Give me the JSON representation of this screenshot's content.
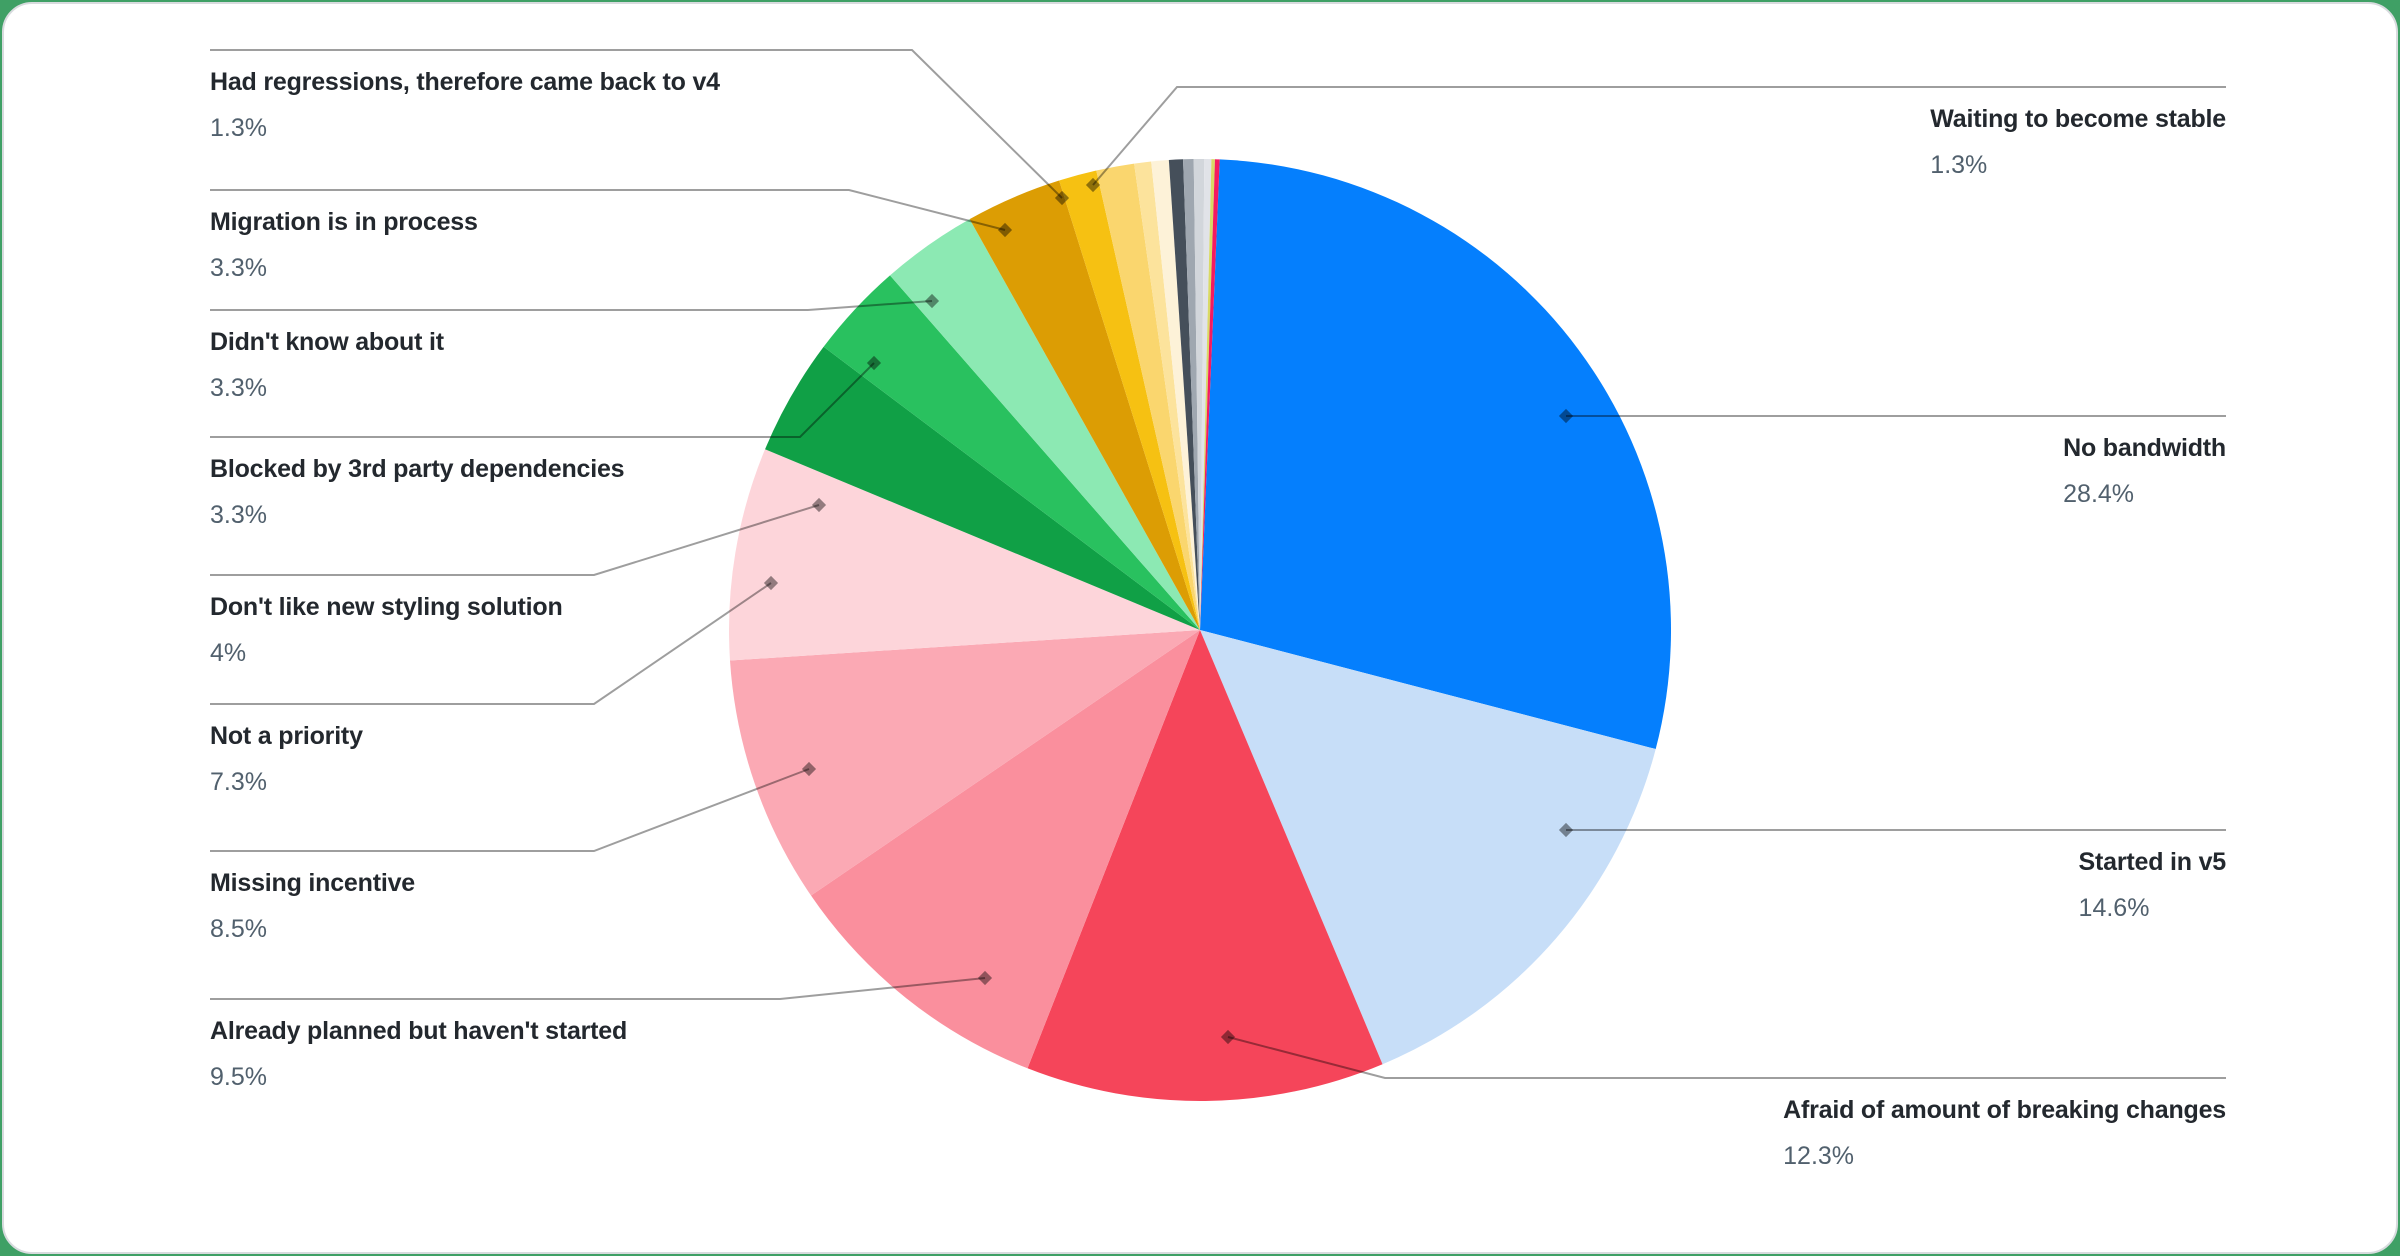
{
  "page": {
    "outer_background": "#3fa065",
    "card_background": "#ffffff",
    "card_border": "#d8dbde",
    "text_primary": "#23282e",
    "text_secondary": "#51606d",
    "leader_line_color": "rgba(0,0,0,0.38)",
    "leader_dot_color": "rgba(0,0,0,0.42)"
  },
  "chart_data": {
    "type": "pie",
    "title": "",
    "unit": "%",
    "legend_position": "callout-labels",
    "start_angle_deg": 2.4,
    "slices": [
      {
        "label": "No bandwidth",
        "value": 28.4,
        "pct_label": "28.4%",
        "color": "#057ffd",
        "labeled": true
      },
      {
        "label": "Started in v5",
        "value": 14.6,
        "pct_label": "14.6%",
        "color": "#c7def8",
        "labeled": true
      },
      {
        "label": "Afraid of amount of breaking changes",
        "value": 12.3,
        "pct_label": "12.3%",
        "color": "#f5455a",
        "labeled": true
      },
      {
        "label": "Already planned but haven't started",
        "value": 9.5,
        "pct_label": "9.5%",
        "color": "#fa8f9d",
        "labeled": true
      },
      {
        "label": "Missing incentive",
        "value": 8.5,
        "pct_label": "8.5%",
        "color": "#fba9b4",
        "labeled": true
      },
      {
        "label": "Not a priority",
        "value": 7.3,
        "pct_label": "7.3%",
        "color": "#fdd5da",
        "labeled": true
      },
      {
        "label": "Don't like new styling solution",
        "value": 4,
        "pct_label": "4%",
        "color": "#10a046",
        "labeled": true
      },
      {
        "label": "Blocked by 3rd party dependencies",
        "value": 3.3,
        "pct_label": "3.3%",
        "color": "#29c15f",
        "labeled": true
      },
      {
        "label": "Didn't know about it",
        "value": 3.3,
        "pct_label": "3.3%",
        "color": "#8ce9b3",
        "labeled": true
      },
      {
        "label": "Migration is in process",
        "value": 3.3,
        "pct_label": "3.3%",
        "color": "#dc9d04",
        "labeled": true
      },
      {
        "label": "Had regressions, therefore came back to v4",
        "value": 1.3,
        "pct_label": "1.3%",
        "color": "#f6c112",
        "labeled": true
      },
      {
        "label": "Waiting to become stable",
        "value": 1.3,
        "pct_label": "1.3%",
        "color": "#fad66e",
        "labeled": true
      },
      {
        "label": "",
        "value": 0.58,
        "pct_label": "",
        "color": "#fce39c",
        "labeled": false
      },
      {
        "label": "",
        "value": 0.6,
        "pct_label": "",
        "color": "#fdf2d8",
        "labeled": false
      },
      {
        "label": "",
        "value": 0.48,
        "pct_label": "",
        "color": "#454f5a",
        "labeled": false
      },
      {
        "label": "",
        "value": 0.36,
        "pct_label": "",
        "color": "#9fa7b0",
        "labeled": false
      },
      {
        "label": "",
        "value": 0.36,
        "pct_label": "",
        "color": "#d2d6db",
        "labeled": false
      },
      {
        "label": "",
        "value": 0.24,
        "pct_label": "",
        "color": "#e1e3e8",
        "labeled": false
      },
      {
        "label": "",
        "value": 0.12,
        "pct_label": "",
        "color": "#d9d964",
        "labeled": false
      },
      {
        "label": "",
        "value": 0.16,
        "pct_label": "",
        "color": "#f41a61",
        "labeled": false
      }
    ]
  }
}
